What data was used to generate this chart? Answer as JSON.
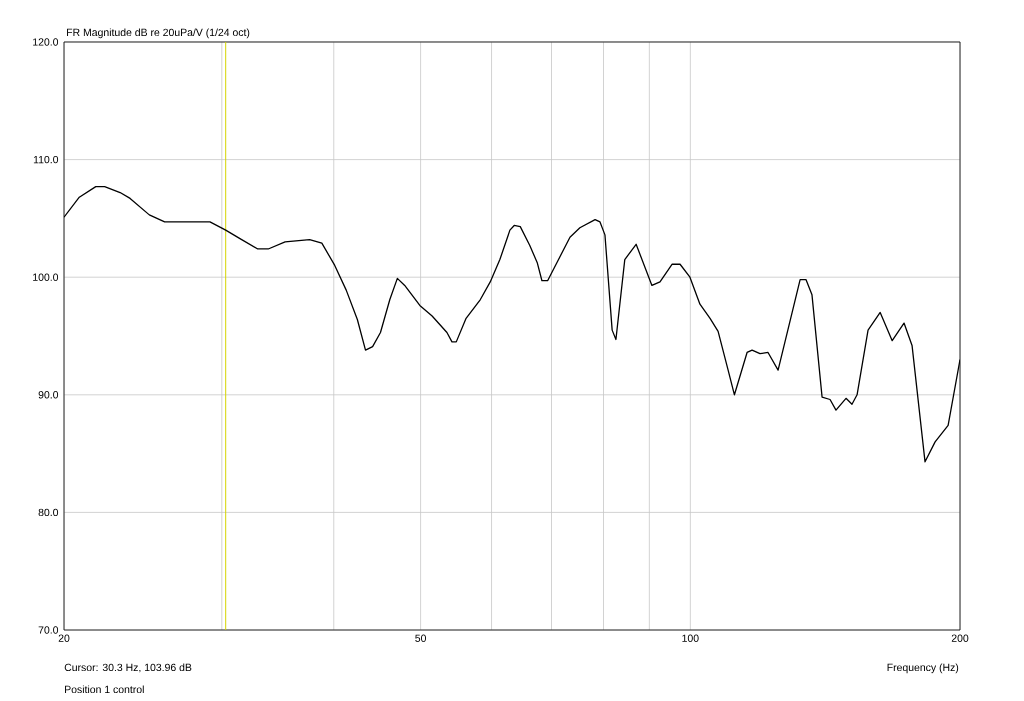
{
  "chart_data": {
    "type": "line",
    "title": "FR Magnitude dB re 20uPa/V (1/24 oct)",
    "xlabel": "Frequency (Hz)",
    "annotations": [
      "Cursor: 30.3 Hz, 103.96 dB",
      "Position 1 control"
    ],
    "x": [
      20,
      20.8,
      21.7,
      22.2,
      23.1,
      23.7,
      24.9,
      25.9,
      29.1,
      30.3,
      31.4,
      32.9,
      33.8,
      35.3,
      37.6,
      38.8,
      40.1,
      41.3,
      42.5,
      43.4,
      44.2,
      45.1,
      46.2,
      47.1,
      48.0,
      49.9,
      51.5,
      53.5,
      54.2,
      54.8,
      56.2,
      58.3,
      59.8,
      61.3,
      62.9,
      63.6,
      64.6,
      66.2,
      67.5,
      68.3,
      69.3,
      73.4,
      75.3,
      78.3,
      79.3,
      80.3,
      81.8,
      82.6,
      84.5,
      87.0,
      90.6,
      92.5,
      95.4,
      97.4,
      99.9,
      102.5,
      105.2,
      107.4,
      110.2,
      112.0,
      115.7,
      117.2,
      119.6,
      122.1,
      125.3,
      132.6,
      134.6,
      136.7,
      140.3,
      143.2,
      145.4,
      149.2,
      151.5,
      153.5,
      157.9,
      162.9,
      168.0,
      173.2,
      176.8,
      182.8,
      187.6,
      194.0,
      200
    ],
    "series": [
      {
        "color": "#000000",
        "values": [
          105.1,
          106.8,
          107.7,
          107.7,
          107.2,
          106.7,
          105.3,
          104.7,
          104.7,
          104.0,
          103.3,
          102.4,
          102.4,
          103.0,
          103.2,
          102.9,
          101.0,
          98.9,
          96.4,
          93.8,
          94.1,
          95.3,
          98.1,
          99.9,
          99.3,
          97.6,
          96.7,
          95.3,
          94.5,
          94.5,
          96.5,
          98.1,
          99.6,
          101.5,
          104.0,
          104.4,
          104.3,
          102.7,
          101.2,
          99.7,
          99.7,
          103.4,
          104.2,
          104.9,
          104.7,
          103.6,
          95.5,
          94.7,
          101.5,
          102.8,
          99.3,
          99.6,
          101.1,
          101.1,
          100.0,
          97.7,
          96.5,
          95.4,
          92.1,
          90.0,
          93.6,
          93.8,
          93.5,
          93.6,
          92.1,
          99.8,
          99.8,
          98.5,
          89.8,
          89.6,
          88.7,
          89.7,
          89.2,
          90.0,
          95.5,
          97.0,
          94.6,
          96.1,
          94.2,
          84.3,
          86.0,
          87.4,
          93.0
        ]
      }
    ],
    "xlim": [
      20,
      200
    ],
    "ylim": [
      70,
      120
    ],
    "xticks": [
      20,
      {
        "value": 30,
        "label": null
      },
      {
        "value": 40,
        "label": null
      },
      50,
      {
        "value": 60,
        "label": null
      },
      {
        "value": 70,
        "label": null
      },
      {
        "value": 80,
        "label": null
      },
      {
        "value": 90,
        "label": null
      },
      100,
      200
    ],
    "yticks": [
      {
        "value": 70,
        "label": "70.0"
      },
      {
        "value": 80,
        "label": "80.0"
      },
      {
        "value": 90,
        "label": "90.0"
      },
      {
        "value": 100,
        "label": "100.0"
      },
      {
        "value": 110,
        "label": "110.0"
      },
      {
        "value": 120,
        "label": "120.0"
      }
    ],
    "log": "x",
    "grid": true,
    "ref_lines": [
      {
        "axis": "x",
        "value": 30.3,
        "color": "#d4d400"
      }
    ]
  }
}
